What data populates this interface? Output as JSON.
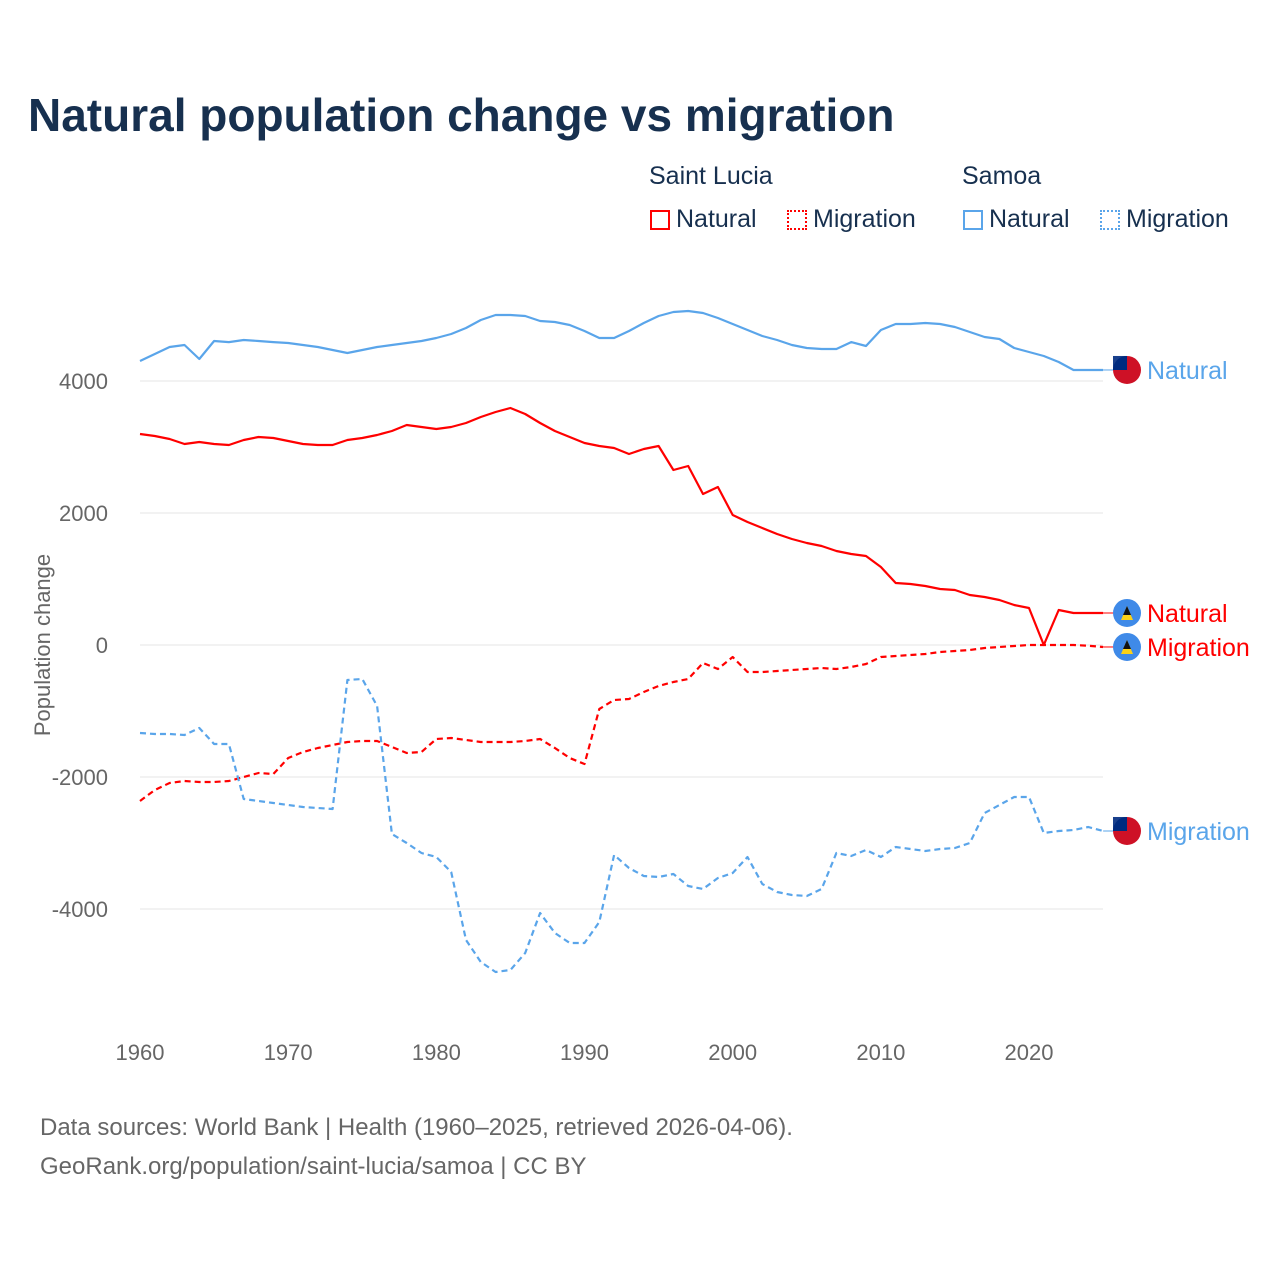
{
  "title": "Natural population change vs migration",
  "legend": {
    "groups": [
      {
        "name": "Saint Lucia",
        "items": [
          {
            "label": "Natural",
            "style": "solid",
            "color": "#ff0000"
          },
          {
            "label": "Migration",
            "style": "dotted",
            "color": "#ff0000"
          }
        ]
      },
      {
        "name": "Samoa",
        "items": [
          {
            "label": "Natural",
            "style": "solid",
            "color": "#5aa5ea"
          },
          {
            "label": "Migration",
            "style": "dotted",
            "color": "#5aa5ea"
          }
        ]
      }
    ]
  },
  "footer": {
    "line1": "Data sources: World Bank | Health (1960–2025, retrieved 2026-04-06).",
    "line2": "GeoRank.org/population/saint-lucia/samoa | CC BY"
  },
  "chart_data": {
    "type": "line",
    "title": "Natural population change vs migration",
    "xlabel": "",
    "ylabel": "Population change",
    "xlim": [
      1960,
      2025
    ],
    "ylim": [
      -5500,
      5500
    ],
    "xticks": [
      1960,
      1970,
      1980,
      1990,
      2000,
      2010,
      2020
    ],
    "xtick_labels": [
      "1960",
      "1970",
      "1980",
      "1990",
      "2000",
      "2010",
      "2020"
    ],
    "yticks": [
      4000,
      2000,
      0,
      -2000,
      -4000
    ],
    "ytick_labels": [
      "4000",
      "2000",
      "0",
      "-2000",
      "-4000"
    ],
    "grid": "horizontal",
    "legend_position": "top-right",
    "x_start": 1960,
    "series": [
      {
        "name": "Samoa Natural",
        "country": "Samoa",
        "label": "Natural",
        "color": "#5aa5ea",
        "dash": false,
        "flag": "samoa-flag",
        "values": [
          4303,
          4409,
          4515,
          4545,
          4333,
          4606,
          4590,
          4621,
          4606,
          4590,
          4576,
          4545,
          4515,
          4470,
          4424,
          4470,
          4515,
          4545,
          4576,
          4606,
          4651,
          4712,
          4803,
          4924,
          5000,
          5000,
          4985,
          4909,
          4894,
          4848,
          4757,
          4651,
          4651,
          4757,
          4879,
          4985,
          5045,
          5060,
          5030,
          4955,
          4864,
          4773,
          4682,
          4621,
          4545,
          4500,
          4485,
          4485,
          4590,
          4530,
          4773,
          4864,
          4864,
          4879,
          4864,
          4818,
          4742,
          4667,
          4636,
          4500,
          4439,
          4379,
          4288,
          4167,
          4167,
          4167
        ]
      },
      {
        "name": "Saint Lucia Natural",
        "country": "Saint Lucia",
        "label": "Natural",
        "color": "#ff0000",
        "dash": false,
        "flag": "saint-lucia-flag",
        "values": [
          3197,
          3167,
          3121,
          3045,
          3076,
          3045,
          3030,
          3106,
          3152,
          3136,
          3091,
          3045,
          3030,
          3030,
          3106,
          3136,
          3182,
          3242,
          3333,
          3303,
          3273,
          3303,
          3364,
          3455,
          3530,
          3591,
          3500,
          3364,
          3242,
          3152,
          3061,
          3015,
          2985,
          2894,
          2970,
          3015,
          2652,
          2712,
          2288,
          2394,
          1970,
          1864,
          1773,
          1682,
          1606,
          1545,
          1500,
          1424,
          1379,
          1348,
          1182,
          939,
          924,
          894,
          848,
          833,
          758,
          727,
          682,
          606,
          561,
          0,
          530,
          485,
          485,
          485
        ]
      },
      {
        "name": "Saint Lucia Migration",
        "country": "Saint Lucia",
        "label": "Migration",
        "color": "#ff0000",
        "dash": true,
        "flag": "saint-lucia-flag",
        "values": [
          -2364,
          -2197,
          -2091,
          -2061,
          -2076,
          -2076,
          -2061,
          -2000,
          -1939,
          -1955,
          -1712,
          -1621,
          -1561,
          -1515,
          -1470,
          -1455,
          -1455,
          -1545,
          -1636,
          -1621,
          -1424,
          -1409,
          -1439,
          -1470,
          -1470,
          -1470,
          -1455,
          -1424,
          -1561,
          -1712,
          -1803,
          -970,
          -833,
          -818,
          -712,
          -621,
          -561,
          -515,
          -273,
          -364,
          -182,
          -409,
          -409,
          -394,
          -379,
          -364,
          -348,
          -364,
          -333,
          -288,
          -182,
          -167,
          -152,
          -136,
          -106,
          -91,
          -76,
          -45,
          -30,
          -15,
          0,
          0,
          0,
          0,
          -10,
          -30
        ]
      },
      {
        "name": "Samoa Migration",
        "country": "Samoa",
        "label": "Migration",
        "color": "#5aa5ea",
        "dash": true,
        "flag": "samoa-flag",
        "values": [
          -1333,
          -1348,
          -1348,
          -1364,
          -1258,
          -1500,
          -1500,
          -2333,
          -2364,
          -2394,
          -2424,
          -2455,
          -2470,
          -2485,
          -530,
          -515,
          -924,
          -2864,
          -3000,
          -3152,
          -3212,
          -3439,
          -4470,
          -4803,
          -4955,
          -4924,
          -4667,
          -4061,
          -4364,
          -4515,
          -4515,
          -4197,
          -3182,
          -3379,
          -3500,
          -3515,
          -3470,
          -3652,
          -3697,
          -3530,
          -3455,
          -3212,
          -3621,
          -3742,
          -3788,
          -3803,
          -3697,
          -3152,
          -3197,
          -3106,
          -3212,
          -3061,
          -3091,
          -3121,
          -3091,
          -3076,
          -3000,
          -2545,
          -2424,
          -2303,
          -2303,
          -2848,
          -2818,
          -2803,
          -2758,
          -2818
        ]
      }
    ]
  }
}
